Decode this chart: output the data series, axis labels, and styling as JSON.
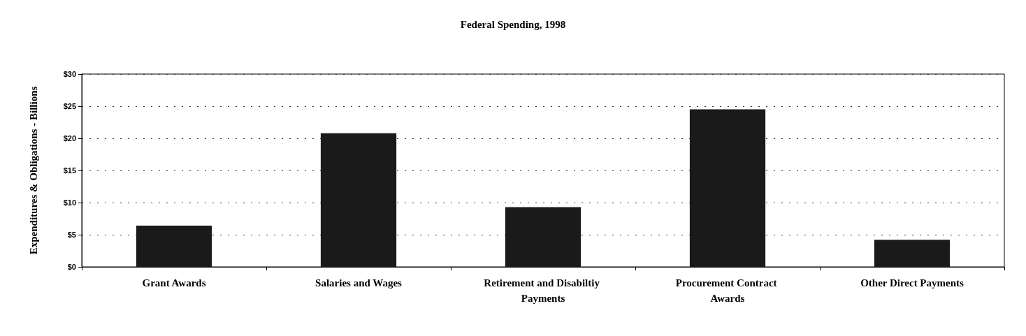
{
  "chart_data": {
    "type": "bar",
    "title": "Federal Spending, 1998",
    "ylabel": "Expenditures & Obligations - Billions",
    "categories": [
      "Grant Awards",
      "Salaries and Wages",
      "Retirement and Disabiltiy Payments",
      "Procurement Contract Awards",
      "Other Direct Payments"
    ],
    "values": [
      6.4,
      20.8,
      9.3,
      24.5,
      4.2
    ],
    "color": "#1a1a1a",
    "ylim": [
      0,
      30
    ],
    "yticks": [
      {
        "value": 0,
        "label": "$0"
      },
      {
        "value": 5,
        "label": "$5"
      },
      {
        "value": 10,
        "label": "$10"
      },
      {
        "value": 15,
        "label": "$15"
      },
      {
        "value": 20,
        "label": "$20"
      },
      {
        "value": 25,
        "label": "$25"
      },
      {
        "value": 30,
        "label": "$30"
      }
    ],
    "grid": "y"
  }
}
